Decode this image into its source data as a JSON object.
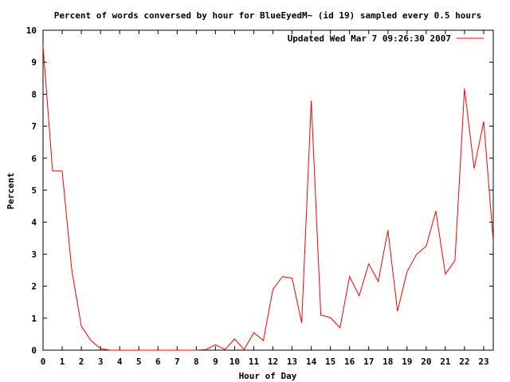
{
  "chart_data": {
    "type": "line",
    "title": "Percent of words conversed by hour for BlueEyedM~ (id 19) sampled every 0.5 hours",
    "xlabel": "Hour of Day",
    "ylabel": "Percent",
    "xlim": [
      0,
      23.5
    ],
    "ylim": [
      0,
      10
    ],
    "xticks": [
      0,
      1,
      2,
      3,
      4,
      5,
      6,
      7,
      8,
      9,
      10,
      11,
      12,
      13,
      14,
      15,
      16,
      17,
      18,
      19,
      20,
      21,
      22,
      23
    ],
    "yticks": [
      0,
      1,
      2,
      3,
      4,
      5,
      6,
      7,
      8,
      9,
      10
    ],
    "legend_position": "top-right",
    "series": [
      {
        "name": "Updated Wed Mar  7 09:26:30 2007",
        "color": "#ff0000",
        "x": [
          0,
          0.5,
          1,
          1.5,
          2,
          2.5,
          3,
          3.5,
          4,
          4.5,
          5,
          5.5,
          6,
          6.5,
          7,
          7.5,
          8,
          8.5,
          9,
          9.5,
          10,
          10.5,
          11,
          11.5,
          12,
          12.5,
          13,
          13.5,
          14,
          14.5,
          15,
          15.5,
          16,
          16.5,
          17,
          17.5,
          18,
          18.5,
          19,
          19.5,
          20,
          20.5,
          21,
          21.5,
          22,
          22.5,
          23,
          23.5
        ],
        "values": [
          9.5,
          5.6,
          5.6,
          2.5,
          0.75,
          0.3,
          0.05,
          0,
          0,
          0,
          0,
          0,
          0,
          0,
          0,
          0,
          0,
          0.02,
          0.17,
          0.02,
          0.35,
          0.02,
          0.55,
          0.3,
          1.9,
          2.3,
          2.25,
          0.85,
          7.8,
          1.1,
          1.02,
          0.7,
          2.3,
          1.7,
          2.7,
          2.15,
          3.75,
          1.22,
          2.45,
          3.0,
          3.25,
          4.35,
          2.38,
          2.8,
          8.18,
          5.68,
          7.15,
          3.4
        ]
      }
    ]
  }
}
